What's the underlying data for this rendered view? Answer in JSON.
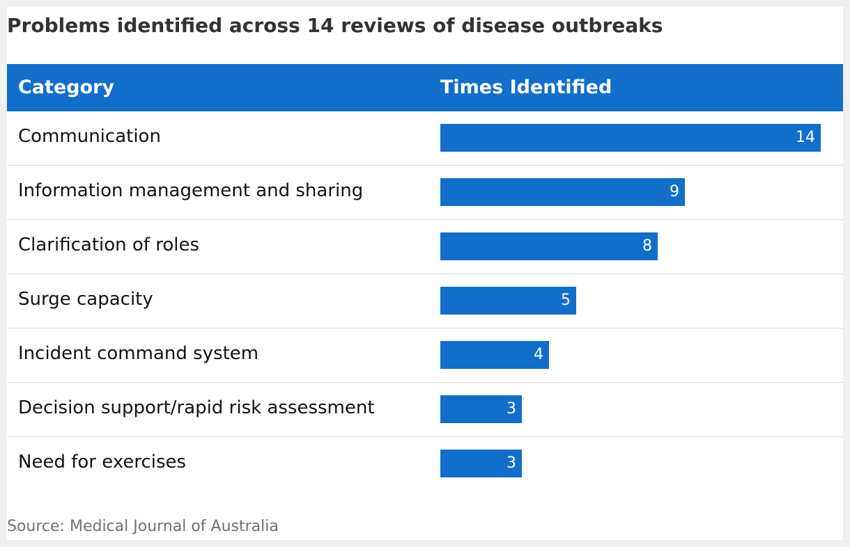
{
  "title": "Problems identified across 14 reviews of disease outbreaks",
  "source": "Source: Medical Journal of Australia",
  "colors": {
    "accent": "#126ec9",
    "header_text": "#ffffff",
    "divider": "#dcdcdc"
  },
  "chart_data": {
    "type": "bar",
    "orientation": "horizontal",
    "title": "Problems identified across 14 reviews of disease outbreaks",
    "columns": [
      "Category",
      "Times Identified"
    ],
    "categories": [
      "Communication",
      "Information management and sharing",
      "Clarification of roles",
      "Surge capacity",
      "Incident command system",
      "Decision support/rapid risk assessment",
      "Need for exercises"
    ],
    "values": [
      14,
      9,
      8,
      5,
      4,
      3,
      3
    ],
    "xlim": [
      0,
      14
    ],
    "grid": false
  }
}
